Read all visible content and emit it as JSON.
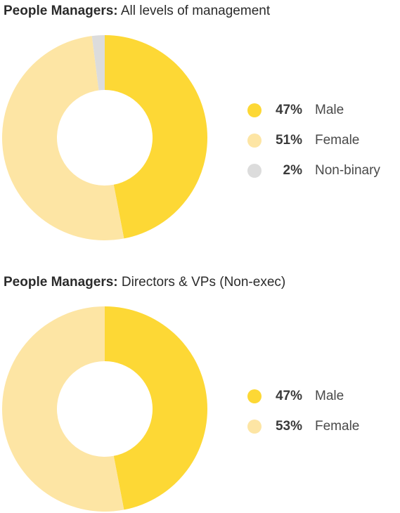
{
  "chart_data": [
    {
      "type": "pie",
      "style": "donut",
      "title_bold": "People Managers:",
      "title_rest": " All levels of management",
      "categories": [
        "Male",
        "Female",
        "Non-binary"
      ],
      "values": [
        47,
        51,
        2
      ],
      "value_labels": [
        "47%",
        "51%",
        "2%"
      ],
      "colors": [
        "#fdd835",
        "#fde5a4",
        "#dcdcdc"
      ],
      "legend_position": "right"
    },
    {
      "type": "pie",
      "style": "donut",
      "title_bold": "People Managers:",
      "title_rest": " Directors & VPs (Non-exec)",
      "categories": [
        "Male",
        "Female"
      ],
      "values": [
        47,
        53
      ],
      "value_labels": [
        "47%",
        "53%"
      ],
      "colors": [
        "#fdd835",
        "#fde5a4"
      ],
      "legend_position": "right"
    }
  ]
}
